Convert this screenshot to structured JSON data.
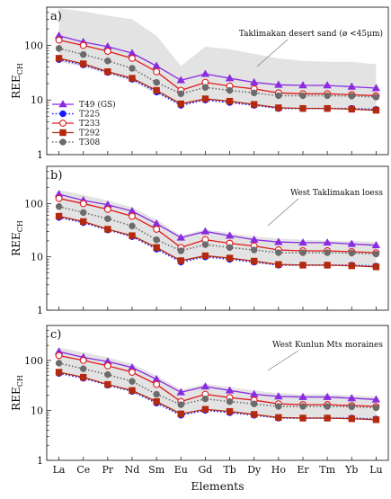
{
  "chart_data": {
    "type": "line",
    "y_scale": "log",
    "ylim": [
      1,
      500
    ],
    "xlabel": "Elements",
    "categories": [
      "La",
      "Ce",
      "Pr",
      "Nd",
      "Sm",
      "Eu",
      "Gd",
      "Tb",
      "Dy",
      "Ho",
      "Er",
      "Tm",
      "Yb",
      "Lu"
    ],
    "y_ticks": [
      "1",
      "10",
      "100"
    ],
    "series_style": [
      {
        "name": "T49 (GS)",
        "color": "#8a2be2",
        "marker": "triangle",
        "dash": "solid"
      },
      {
        "name": "T225",
        "color": "#1a1aff",
        "marker": "circle",
        "dash": "dotted"
      },
      {
        "name": "T233",
        "color": "#e01b1b",
        "marker": "open-circle",
        "dash": "solid"
      },
      {
        "name": "T292",
        "color": "#b5290f",
        "marker": "square",
        "dash": "solid"
      },
      {
        "name": "T308",
        "color": "#6b6b6b",
        "marker": "circle",
        "dash": "dotted"
      }
    ],
    "legend_position": "left",
    "panels": [
      {
        "letter": "a)",
        "ylabel_main": "REE",
        "ylabel_sub": "CH",
        "envelope_label": "Taklimakan desert sand (ø <45μm)",
        "envelope": {
          "upper": [
            480,
            420,
            350,
            300,
            150,
            42,
            95,
            85,
            70,
            58,
            52,
            50,
            50,
            45
          ],
          "lower": [
            50,
            40,
            30,
            22,
            13,
            8,
            10,
            9,
            8,
            7,
            7,
            7,
            7,
            6
          ]
        },
        "series": [
          {
            "name": "T49 (GS)",
            "values": [
              150,
              115,
              95,
              72,
              42,
              23,
              30,
              25,
              21,
              19,
              18.5,
              18.5,
              17.5,
              16.5
            ]
          },
          {
            "name": "T225",
            "values": [
              55,
              44,
              32,
              24,
              14,
              8,
              10,
              9,
              8,
              7,
              7,
              7,
              7,
              6.7
            ]
          },
          {
            "name": "T233",
            "values": [
              125,
              100,
              78,
              58,
              33,
              15,
              21,
              18,
              16,
              13.5,
              13,
              13,
              12.5,
              12
            ]
          },
          {
            "name": "T292",
            "values": [
              58,
              46,
              33,
              25,
              15,
              8.5,
              10.5,
              9.5,
              8.3,
              7.2,
              7,
              7,
              6.8,
              6.5
            ]
          },
          {
            "name": "T308",
            "values": [
              88,
              68,
              52,
              38,
              21,
              13,
              17,
              15,
              13.5,
              12,
              12,
              12,
              11.8,
              11.3
            ]
          }
        ]
      },
      {
        "letter": "b)",
        "ylabel_main": "REE",
        "ylabel_sub": "CH",
        "envelope_label": "West Taklimakan loess",
        "envelope": {
          "upper": [
            180,
            145,
            115,
            85,
            50,
            25,
            33,
            28,
            24,
            22,
            21,
            20,
            20,
            19
          ],
          "lower": [
            55,
            44,
            32,
            24,
            14,
            8,
            10,
            9,
            8,
            7,
            7,
            7,
            7,
            6.5
          ]
        },
        "series": [
          {
            "name": "T49 (GS)",
            "values": [
              150,
              115,
              95,
              72,
              42,
              23,
              30,
              25,
              21,
              19,
              18.5,
              18.5,
              17.5,
              16.5
            ]
          },
          {
            "name": "T225",
            "values": [
              55,
              44,
              32,
              24,
              14,
              8,
              10,
              9,
              8,
              7,
              7,
              7,
              7,
              6.7
            ]
          },
          {
            "name": "T233",
            "values": [
              125,
              100,
              78,
              58,
              33,
              15,
              21,
              18,
              16,
              13.5,
              13,
              13,
              12.5,
              12
            ]
          },
          {
            "name": "T292",
            "values": [
              58,
              46,
              33,
              25,
              15,
              8.5,
              10.5,
              9.5,
              8.3,
              7.2,
              7,
              7,
              6.8,
              6.5
            ]
          },
          {
            "name": "T308",
            "values": [
              88,
              68,
              52,
              38,
              21,
              13,
              17,
              15,
              13.5,
              12,
              12,
              12,
              11.8,
              11.3
            ]
          }
        ]
      },
      {
        "letter": "c)",
        "ylabel_main": "REE",
        "ylabel_sub": "CH",
        "envelope_label": "West Kunlun Mts moraines",
        "envelope": {
          "upper": [
            180,
            145,
            115,
            85,
            50,
            26,
            34,
            29,
            25,
            22,
            21,
            21,
            20,
            19
          ],
          "lower": [
            55,
            44,
            32,
            24,
            14,
            8,
            10,
            9,
            8,
            7,
            7,
            7,
            7,
            6.5
          ]
        },
        "series": [
          {
            "name": "T49 (GS)",
            "values": [
              150,
              115,
              95,
              72,
              42,
              23,
              30,
              25,
              21,
              19,
              18.5,
              18.5,
              17.5,
              16.5
            ]
          },
          {
            "name": "T225",
            "values": [
              55,
              44,
              32,
              24,
              14,
              8,
              10,
              9,
              8,
              7,
              7,
              7,
              7,
              6.7
            ]
          },
          {
            "name": "T233",
            "values": [
              125,
              100,
              78,
              58,
              33,
              15,
              21,
              18,
              16,
              13.5,
              13,
              13,
              12.5,
              12
            ]
          },
          {
            "name": "T292",
            "values": [
              58,
              46,
              33,
              25,
              15,
              8.5,
              10.5,
              9.5,
              8.3,
              7.2,
              7,
              7,
              6.8,
              6.5
            ]
          },
          {
            "name": "T308",
            "values": [
              88,
              68,
              52,
              38,
              21,
              13,
              17,
              15,
              13.5,
              12,
              12,
              12,
              11.8,
              11.3
            ]
          }
        ]
      }
    ]
  }
}
